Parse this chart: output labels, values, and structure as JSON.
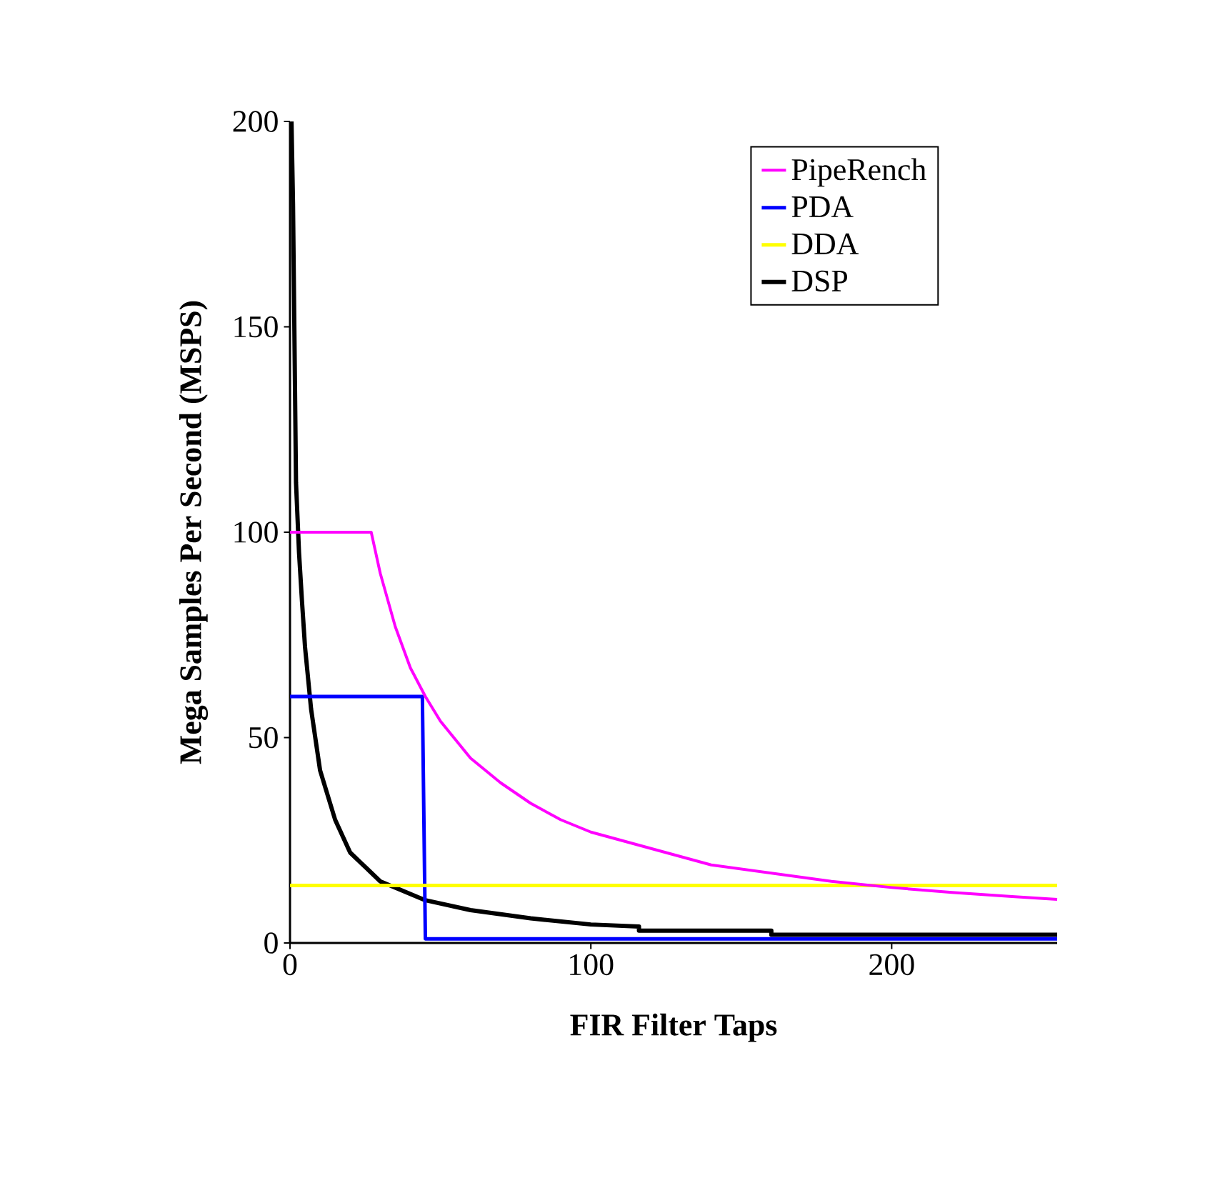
{
  "chart_data": {
    "type": "line",
    "xlabel": "FIR Filter Taps",
    "ylabel": "Mega Samples Per Second (MSPS)",
    "xlim": [
      0,
      255
    ],
    "ylim": [
      0,
      200
    ],
    "xticks": [
      0,
      100,
      200
    ],
    "yticks": [
      0,
      50,
      100,
      150,
      200
    ],
    "legend": "top right",
    "grid": false,
    "marker": "none",
    "series": [
      {
        "name": "PipeRench",
        "color": "#ff00ff",
        "x": [
          0,
          27,
          30,
          35,
          40,
          45,
          50,
          60,
          70,
          80,
          90,
          100,
          120,
          140,
          160,
          180,
          200,
          220,
          240,
          255
        ],
        "values": [
          100,
          100,
          90,
          77,
          67,
          60,
          54,
          45,
          39,
          34,
          30,
          27,
          23,
          19,
          17,
          15,
          13.5,
          12.3,
          11.3,
          10.6
        ]
      },
      {
        "name": "PDA",
        "color": "#0000ff",
        "x": [
          0,
          44,
          45,
          255
        ],
        "values": [
          60,
          60,
          1,
          1
        ]
      },
      {
        "name": "DDA",
        "color": "#ffff00",
        "x": [
          0,
          255
        ],
        "values": [
          14,
          14
        ]
      },
      {
        "name": "DSP",
        "color": "#000000",
        "x": [
          0.5,
          1,
          2,
          3,
          4,
          5,
          7,
          10,
          15,
          20,
          30,
          45,
          60,
          80,
          100,
          116,
          116,
          160,
          160,
          255
        ],
        "values": [
          200,
          180,
          112,
          95,
          83,
          72,
          57,
          42,
          30,
          22,
          15,
          10.4,
          8,
          6,
          4.5,
          4,
          3,
          3,
          2,
          2
        ]
      }
    ]
  }
}
